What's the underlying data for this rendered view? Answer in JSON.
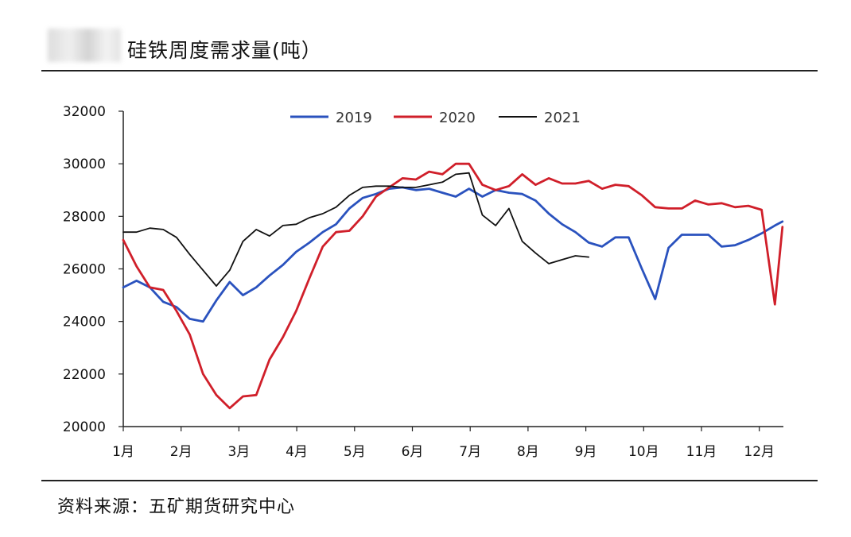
{
  "header": {
    "title": "硅铁周度需求量(吨）"
  },
  "footer": {
    "source": "资料来源：五矿期货研究中心"
  },
  "colors": {
    "s2019": "#2a52be",
    "s2020": "#d01f2a",
    "s2021": "#111111",
    "axis": "#222222"
  },
  "chart_data": {
    "type": "line",
    "title": "硅铁周度需求量(吨）",
    "xlabel": "",
    "ylabel": "",
    "ylim": [
      20000,
      32000
    ],
    "xlim": [
      0,
      11.4
    ],
    "yticks": [
      20000,
      22000,
      24000,
      26000,
      28000,
      30000,
      32000
    ],
    "xtick_labels": [
      "1月",
      "2月",
      "3月",
      "4月",
      "5月",
      "6月",
      "7月",
      "8月",
      "9月",
      "10月",
      "11月",
      "12月"
    ],
    "grid": false,
    "legend": "top-center",
    "series": [
      {
        "name": "2019",
        "x": [
          0,
          0.23,
          0.46,
          0.69,
          0.92,
          1.15,
          1.38,
          1.61,
          1.84,
          2.07,
          2.3,
          2.53,
          2.76,
          2.99,
          3.22,
          3.45,
          3.68,
          3.91,
          4.14,
          4.37,
          4.6,
          4.83,
          5.06,
          5.29,
          5.52,
          5.75,
          5.98,
          6.21,
          6.44,
          6.67,
          6.9,
          7.13,
          7.36,
          7.59,
          7.82,
          8.05,
          8.28,
          8.51,
          8.74,
          8.97,
          9.2,
          9.43,
          9.66,
          9.89,
          10.12,
          10.35,
          10.58,
          10.81,
          11.04,
          11.27,
          11.4
        ],
        "values": [
          25300,
          25550,
          25300,
          24750,
          24550,
          24100,
          24000,
          24800,
          25500,
          25000,
          25300,
          25750,
          26150,
          26650,
          27000,
          27400,
          27700,
          28300,
          28700,
          28850,
          29050,
          29100,
          29000,
          29050,
          28900,
          28750,
          29050,
          28750,
          29000,
          28900,
          28850,
          28600,
          28100,
          27700,
          27400,
          27000,
          26850,
          27200,
          27200,
          26000,
          24850,
          26800,
          27300,
          27300,
          27300,
          26850,
          26900,
          27100,
          27350,
          27650,
          27800
        ]
      },
      {
        "name": "2020",
        "x": [
          0,
          0.23,
          0.46,
          0.69,
          0.92,
          1.15,
          1.38,
          1.61,
          1.84,
          2.07,
          2.3,
          2.53,
          2.76,
          2.99,
          3.22,
          3.45,
          3.68,
          3.91,
          4.14,
          4.37,
          4.6,
          4.83,
          5.06,
          5.29,
          5.52,
          5.75,
          5.98,
          6.21,
          6.44,
          6.67,
          6.9,
          7.13,
          7.36,
          7.59,
          7.82,
          8.05,
          8.28,
          8.51,
          8.74,
          8.97,
          9.2,
          9.43,
          9.66,
          9.89,
          10.12,
          10.35,
          10.58,
          10.81,
          11.04,
          11.27,
          11.4
        ],
        "values": [
          27100,
          26100,
          25300,
          25200,
          24400,
          23500,
          22000,
          21200,
          20700,
          21150,
          21200,
          22550,
          23400,
          24400,
          25650,
          26850,
          27400,
          27450,
          28000,
          28750,
          29100,
          29450,
          29400,
          29700,
          29600,
          30000,
          30000,
          29200,
          29000,
          29150,
          29600,
          29200,
          29450,
          29250,
          29250,
          29350,
          29050,
          29200,
          29150,
          28800,
          28350,
          28300,
          28300,
          28600,
          28450,
          28500,
          28350,
          28400,
          28250,
          24650,
          27600
        ]
      },
      {
        "name": "2021",
        "x": [
          0,
          0.23,
          0.46,
          0.69,
          0.92,
          1.15,
          1.38,
          1.61,
          1.84,
          2.07,
          2.3,
          2.53,
          2.76,
          2.99,
          3.22,
          3.45,
          3.68,
          3.91,
          4.14,
          4.37,
          4.6,
          4.83,
          5.06,
          5.29,
          5.52,
          5.75,
          5.98,
          6.21,
          6.44,
          6.67,
          6.9,
          7.13,
          7.36,
          7.59,
          7.82,
          8.05
        ],
        "values": [
          27400,
          27400,
          27550,
          27500,
          27200,
          26550,
          25950,
          25350,
          25950,
          27050,
          27500,
          27250,
          27650,
          27700,
          27950,
          28100,
          28350,
          28800,
          29100,
          29150,
          29150,
          29100,
          29100,
          29200,
          29300,
          29600,
          29650,
          28050,
          27650,
          28300,
          27050,
          26600,
          26200,
          26350,
          26500,
          26450
        ]
      }
    ]
  }
}
